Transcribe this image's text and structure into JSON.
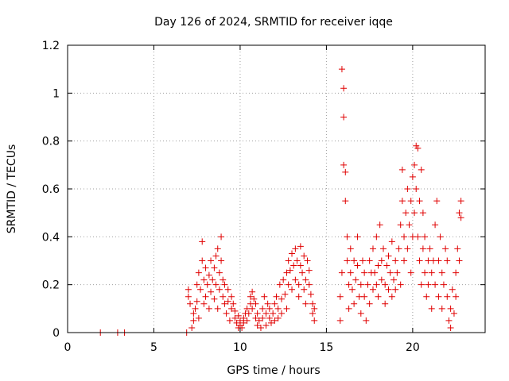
{
  "chart_data": {
    "type": "scatter",
    "title": "Day 126 of 2024, SRMTID for receiver iqqe",
    "xlabel": "GPS time / hours",
    "ylabel": "SRMTID / TECUs",
    "xlim": [
      0,
      24.2
    ],
    "ylim": [
      0,
      1.2
    ],
    "xticks": [
      0,
      5,
      10,
      15,
      20
    ],
    "xtick_labels": [
      "0",
      "5",
      "10",
      "15",
      "20"
    ],
    "yticks": [
      0,
      0.2,
      0.4,
      0.6,
      0.8,
      1.0,
      1.2
    ],
    "ytick_labels": [
      "0",
      "0.2",
      "0.4",
      "0.6",
      "0.8",
      "1",
      "1.2"
    ],
    "grid": true,
    "marker": "+",
    "color": "#e00000",
    "series": [
      {
        "name": "SRMTID",
        "points": [
          [
            1.9,
            0.0
          ],
          [
            2.9,
            0.0
          ],
          [
            3.3,
            0.0
          ],
          [
            6.9,
            0.0
          ],
          [
            7.0,
            0.15
          ],
          [
            7.0,
            0.18
          ],
          [
            7.1,
            0.12
          ],
          [
            7.2,
            0.02
          ],
          [
            7.3,
            0.05
          ],
          [
            7.3,
            0.08
          ],
          [
            7.4,
            0.1
          ],
          [
            7.5,
            0.2
          ],
          [
            7.5,
            0.13
          ],
          [
            7.6,
            0.25
          ],
          [
            7.6,
            0.06
          ],
          [
            7.7,
            0.18
          ],
          [
            7.8,
            0.38
          ],
          [
            7.8,
            0.3
          ],
          [
            7.9,
            0.22
          ],
          [
            7.9,
            0.12
          ],
          [
            8.0,
            0.27
          ],
          [
            8.0,
            0.15
          ],
          [
            8.1,
            0.2
          ],
          [
            8.2,
            0.1
          ],
          [
            8.2,
            0.24
          ],
          [
            8.3,
            0.3
          ],
          [
            8.3,
            0.17
          ],
          [
            8.4,
            0.22
          ],
          [
            8.5,
            0.14
          ],
          [
            8.5,
            0.27
          ],
          [
            8.6,
            0.32
          ],
          [
            8.6,
            0.2
          ],
          [
            8.7,
            0.35
          ],
          [
            8.7,
            0.1
          ],
          [
            8.8,
            0.25
          ],
          [
            8.8,
            0.18
          ],
          [
            8.9,
            0.4
          ],
          [
            8.9,
            0.3
          ],
          [
            9.0,
            0.22
          ],
          [
            9.0,
            0.15
          ],
          [
            9.1,
            0.12
          ],
          [
            9.1,
            0.2
          ],
          [
            9.2,
            0.08
          ],
          [
            9.3,
            0.13
          ],
          [
            9.3,
            0.18
          ],
          [
            9.4,
            0.05
          ],
          [
            9.5,
            0.1
          ],
          [
            9.5,
            0.15
          ],
          [
            9.6,
            0.12
          ],
          [
            9.7,
            0.06
          ],
          [
            9.7,
            0.09
          ],
          [
            9.8,
            0.04
          ],
          [
            9.9,
            0.02
          ],
          [
            9.9,
            0.07
          ],
          [
            10.0,
            0.03
          ],
          [
            10.0,
            0.05
          ],
          [
            10.1,
            0.02
          ],
          [
            10.2,
            0.06
          ],
          [
            10.2,
            0.04
          ],
          [
            10.3,
            0.08
          ],
          [
            10.4,
            0.05
          ],
          [
            10.4,
            0.1
          ],
          [
            10.5,
            0.08
          ],
          [
            10.6,
            0.12
          ],
          [
            10.6,
            0.15
          ],
          [
            10.7,
            0.17
          ],
          [
            10.7,
            0.1
          ],
          [
            10.8,
            0.14
          ],
          [
            10.9,
            0.12
          ],
          [
            10.9,
            0.06
          ],
          [
            11.0,
            0.08
          ],
          [
            11.0,
            0.03
          ],
          [
            11.1,
            0.05
          ],
          [
            11.2,
            0.02
          ],
          [
            11.3,
            0.1
          ],
          [
            11.3,
            0.06
          ],
          [
            11.4,
            0.15
          ],
          [
            11.5,
            0.08
          ],
          [
            11.5,
            0.03
          ],
          [
            11.6,
            0.12
          ],
          [
            11.7,
            0.06
          ],
          [
            11.7,
            0.1
          ],
          [
            11.8,
            0.04
          ],
          [
            11.9,
            0.08
          ],
          [
            12.0,
            0.12
          ],
          [
            12.0,
            0.05
          ],
          [
            12.1,
            0.15
          ],
          [
            12.2,
            0.1
          ],
          [
            12.2,
            0.06
          ],
          [
            12.3,
            0.2
          ],
          [
            12.4,
            0.14
          ],
          [
            12.4,
            0.08
          ],
          [
            12.5,
            0.22
          ],
          [
            12.6,
            0.16
          ],
          [
            12.7,
            0.25
          ],
          [
            12.7,
            0.1
          ],
          [
            12.8,
            0.3
          ],
          [
            12.8,
            0.2
          ],
          [
            12.9,
            0.26
          ],
          [
            13.0,
            0.18
          ],
          [
            13.0,
            0.33
          ],
          [
            13.1,
            0.28
          ],
          [
            13.2,
            0.22
          ],
          [
            13.2,
            0.35
          ],
          [
            13.3,
            0.3
          ],
          [
            13.4,
            0.2
          ],
          [
            13.4,
            0.15
          ],
          [
            13.5,
            0.28
          ],
          [
            13.5,
            0.36
          ],
          [
            13.6,
            0.25
          ],
          [
            13.7,
            0.18
          ],
          [
            13.7,
            0.32
          ],
          [
            13.8,
            0.22
          ],
          [
            13.8,
            0.12
          ],
          [
            13.9,
            0.3
          ],
          [
            14.0,
            0.2
          ],
          [
            14.0,
            0.26
          ],
          [
            14.1,
            0.16
          ],
          [
            14.2,
            0.08
          ],
          [
            14.2,
            0.12
          ],
          [
            14.3,
            0.05
          ],
          [
            14.3,
            0.1
          ],
          [
            15.8,
            0.05
          ],
          [
            15.8,
            0.15
          ],
          [
            15.9,
            0.25
          ],
          [
            15.9,
            1.1
          ],
          [
            16.0,
            1.02
          ],
          [
            16.0,
            0.9
          ],
          [
            16.0,
            0.7
          ],
          [
            16.1,
            0.67
          ],
          [
            16.1,
            0.55
          ],
          [
            16.2,
            0.4
          ],
          [
            16.2,
            0.3
          ],
          [
            16.3,
            0.2
          ],
          [
            16.3,
            0.1
          ],
          [
            16.4,
            0.25
          ],
          [
            16.4,
            0.35
          ],
          [
            16.5,
            0.18
          ],
          [
            16.6,
            0.3
          ],
          [
            16.6,
            0.12
          ],
          [
            16.7,
            0.22
          ],
          [
            16.8,
            0.28
          ],
          [
            16.8,
            0.4
          ],
          [
            16.9,
            0.15
          ],
          [
            17.0,
            0.08
          ],
          [
            17.0,
            0.2
          ],
          [
            17.1,
            0.3
          ],
          [
            17.2,
            0.15
          ],
          [
            17.2,
            0.25
          ],
          [
            17.3,
            0.05
          ],
          [
            17.4,
            0.2
          ],
          [
            17.5,
            0.3
          ],
          [
            17.5,
            0.12
          ],
          [
            17.6,
            0.25
          ],
          [
            17.7,
            0.18
          ],
          [
            17.7,
            0.35
          ],
          [
            17.8,
            0.25
          ],
          [
            17.9,
            0.4
          ],
          [
            17.9,
            0.2
          ],
          [
            18.0,
            0.28
          ],
          [
            18.0,
            0.15
          ],
          [
            18.1,
            0.45
          ],
          [
            18.2,
            0.3
          ],
          [
            18.2,
            0.22
          ],
          [
            18.3,
            0.35
          ],
          [
            18.4,
            0.2
          ],
          [
            18.4,
            0.12
          ],
          [
            18.5,
            0.28
          ],
          [
            18.6,
            0.18
          ],
          [
            18.6,
            0.32
          ],
          [
            18.7,
            0.25
          ],
          [
            18.8,
            0.38
          ],
          [
            18.8,
            0.15
          ],
          [
            18.9,
            0.22
          ],
          [
            19.0,
            0.3
          ],
          [
            19.0,
            0.18
          ],
          [
            19.1,
            0.25
          ],
          [
            19.2,
            0.35
          ],
          [
            19.3,
            0.2
          ],
          [
            19.3,
            0.45
          ],
          [
            19.4,
            0.55
          ],
          [
            19.4,
            0.68
          ],
          [
            19.5,
            0.4
          ],
          [
            19.5,
            0.3
          ],
          [
            19.6,
            0.5
          ],
          [
            19.7,
            0.35
          ],
          [
            19.7,
            0.6
          ],
          [
            19.8,
            0.45
          ],
          [
            19.9,
            0.25
          ],
          [
            19.9,
            0.55
          ],
          [
            20.0,
            0.65
          ],
          [
            20.0,
            0.4
          ],
          [
            20.1,
            0.7
          ],
          [
            20.1,
            0.5
          ],
          [
            20.2,
            0.78
          ],
          [
            20.2,
            0.6
          ],
          [
            20.3,
            0.77
          ],
          [
            20.3,
            0.4
          ],
          [
            20.4,
            0.55
          ],
          [
            20.4,
            0.3
          ],
          [
            20.5,
            0.68
          ],
          [
            20.5,
            0.2
          ],
          [
            20.6,
            0.35
          ],
          [
            20.6,
            0.5
          ],
          [
            20.7,
            0.25
          ],
          [
            20.7,
            0.4
          ],
          [
            20.8,
            0.15
          ],
          [
            20.9,
            0.3
          ],
          [
            20.9,
            0.2
          ],
          [
            21.0,
            0.35
          ],
          [
            21.1,
            0.25
          ],
          [
            21.1,
            0.1
          ],
          [
            21.2,
            0.3
          ],
          [
            21.3,
            0.2
          ],
          [
            21.3,
            0.45
          ],
          [
            21.4,
            0.55
          ],
          [
            21.5,
            0.3
          ],
          [
            21.5,
            0.15
          ],
          [
            21.6,
            0.4
          ],
          [
            21.7,
            0.25
          ],
          [
            21.7,
            0.1
          ],
          [
            21.8,
            0.2
          ],
          [
            21.9,
            0.35
          ],
          [
            22.0,
            0.3
          ],
          [
            22.0,
            0.15
          ],
          [
            22.1,
            0.05
          ],
          [
            22.2,
            0.1
          ],
          [
            22.2,
            0.02
          ],
          [
            22.3,
            0.18
          ],
          [
            22.4,
            0.08
          ],
          [
            22.5,
            0.15
          ],
          [
            22.5,
            0.25
          ],
          [
            22.6,
            0.35
          ],
          [
            22.7,
            0.5
          ],
          [
            22.7,
            0.3
          ],
          [
            22.8,
            0.55
          ],
          [
            22.8,
            0.48
          ]
        ]
      }
    ]
  }
}
